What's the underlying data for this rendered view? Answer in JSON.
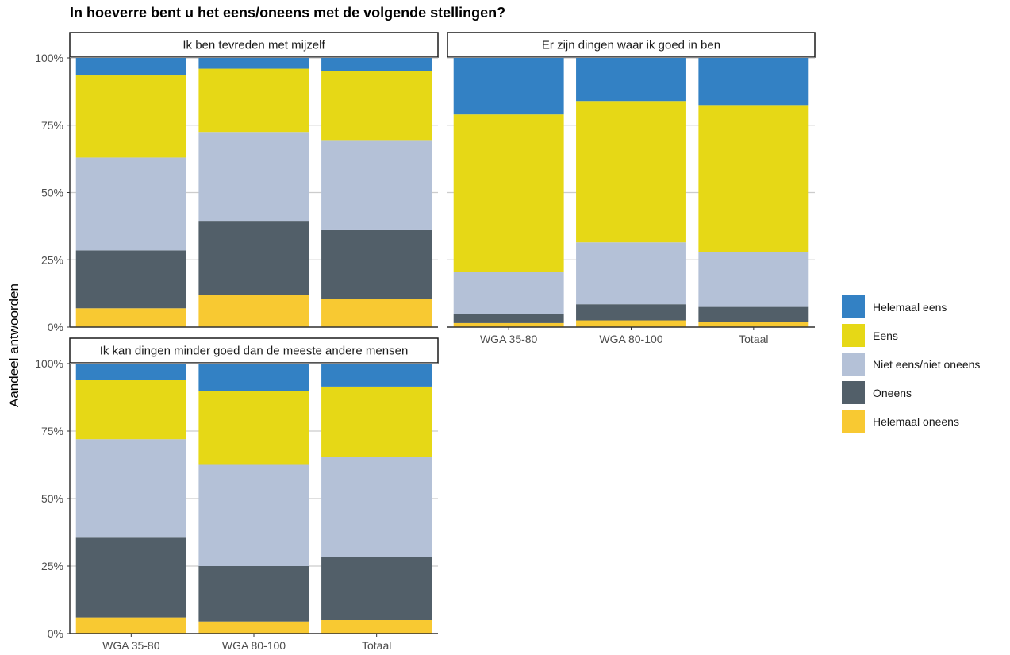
{
  "chart_data": {
    "type": "bar",
    "stacked": true,
    "normalized": true,
    "title": "In hoeverre bent u het eens/oneens met de volgende stellingen?",
    "ylabel": "Aandeel antwoorden",
    "xlabel": "",
    "ylim": [
      0,
      1
    ],
    "yticks": [
      0,
      0.25,
      0.5,
      0.75,
      1
    ],
    "ytick_labels": [
      "0%",
      "25%",
      "50%",
      "75%",
      "100%"
    ],
    "grid": true,
    "legend_position": "right",
    "categories": [
      "WGA 35-80",
      "WGA 80-100",
      "Totaal"
    ],
    "series_order_bottom_to_top": [
      "Helemaal oneens",
      "Oneens",
      "Niet eens/niet oneens",
      "Eens",
      "Helemaal eens"
    ],
    "legend": [
      {
        "name": "Helemaal eens",
        "color": "#3381c4"
      },
      {
        "name": "Eens",
        "color": "#e6d816"
      },
      {
        "name": "Niet eens/niet oneens",
        "color": "#b4c1d7"
      },
      {
        "name": "Oneens",
        "color": "#525f69"
      },
      {
        "name": "Helemaal oneens",
        "color": "#f8c932"
      }
    ],
    "panels": [
      {
        "title": "Ik ben tevreden met mijzelf",
        "series": [
          {
            "name": "Helemaal oneens",
            "values": [
              0.07,
              0.12,
              0.105
            ]
          },
          {
            "name": "Oneens",
            "values": [
              0.215,
              0.275,
              0.255
            ]
          },
          {
            "name": "Niet eens/niet oneens",
            "values": [
              0.345,
              0.33,
              0.335
            ]
          },
          {
            "name": "Eens",
            "values": [
              0.305,
              0.235,
              0.255
            ]
          },
          {
            "name": "Helemaal eens",
            "values": [
              0.065,
              0.04,
              0.05
            ]
          }
        ]
      },
      {
        "title": "Er zijn dingen waar ik goed in ben",
        "series": [
          {
            "name": "Helemaal oneens",
            "values": [
              0.015,
              0.025,
              0.02
            ]
          },
          {
            "name": "Oneens",
            "values": [
              0.035,
              0.06,
              0.055
            ]
          },
          {
            "name": "Niet eens/niet oneens",
            "values": [
              0.155,
              0.23,
              0.205
            ]
          },
          {
            "name": "Eens",
            "values": [
              0.585,
              0.525,
              0.545
            ]
          },
          {
            "name": "Helemaal eens",
            "values": [
              0.21,
              0.16,
              0.175
            ]
          }
        ]
      },
      {
        "title": "Ik kan dingen minder goed dan de meeste andere mensen",
        "series": [
          {
            "name": "Helemaal oneens",
            "values": [
              0.06,
              0.045,
              0.05
            ]
          },
          {
            "name": "Oneens",
            "values": [
              0.295,
              0.205,
              0.235
            ]
          },
          {
            "name": "Niet eens/niet oneens",
            "values": [
              0.365,
              0.375,
              0.37
            ]
          },
          {
            "name": "Eens",
            "values": [
              0.22,
              0.275,
              0.26
            ]
          },
          {
            "name": "Helemaal eens",
            "values": [
              0.06,
              0.1,
              0.085
            ]
          }
        ]
      }
    ]
  }
}
